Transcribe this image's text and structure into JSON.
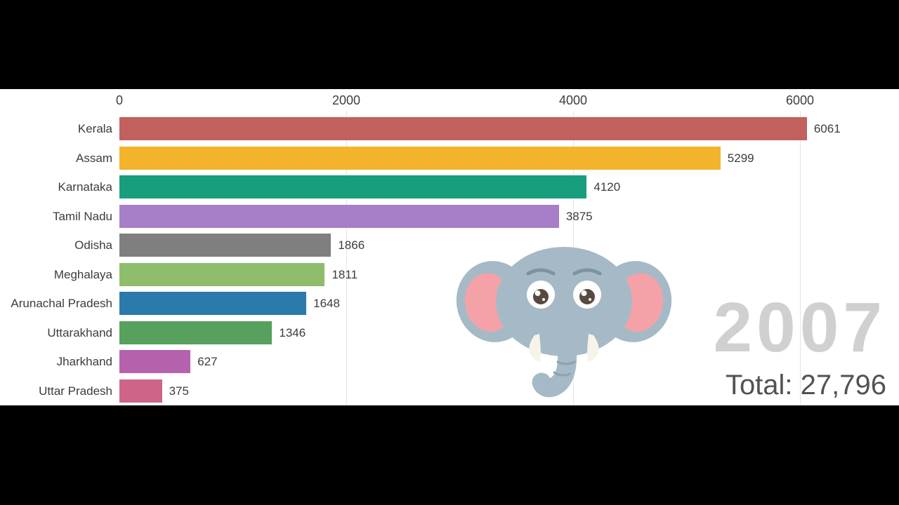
{
  "chart_data": {
    "type": "bar",
    "orientation": "horizontal",
    "title": "",
    "categories": [
      "Kerala",
      "Assam",
      "Karnataka",
      "Tamil Nadu",
      "Odisha",
      "Meghalaya",
      "Arunachal Pradesh",
      "Uttarakhand",
      "Jharkhand",
      "Uttar Pradesh"
    ],
    "values": [
      6061,
      5299,
      4120,
      3875,
      1866,
      1811,
      1648,
      1346,
      627,
      375
    ],
    "value_labels": [
      "6061",
      "5299",
      "4120",
      "3875",
      "1866",
      "1811",
      "1648",
      "1346",
      "627",
      "375"
    ],
    "bar_colors": [
      "#c1605c",
      "#f3b32b",
      "#189e7c",
      "#a77fc9",
      "#7f7f7f",
      "#8fbd6c",
      "#2a7aab",
      "#57a05e",
      "#b561ae",
      "#ce6487"
    ],
    "axis": {
      "position": "top",
      "ticks": [
        0,
        2000,
        4000,
        6000
      ],
      "tick_labels": [
        "0",
        "2000",
        "4000",
        "6000"
      ],
      "max": 6000,
      "grid": true
    },
    "legend": "none"
  },
  "overlay": {
    "year": "2007",
    "total": "Total: 27,796",
    "illustration": "elephant-cartoon"
  },
  "colors": {
    "background": "#000000",
    "chart_background": "#ffffff",
    "grid": "#e4e4e4",
    "label_text": "#3c3c3c",
    "year_text": "#d0d0d0",
    "total_text": "#525252"
  }
}
